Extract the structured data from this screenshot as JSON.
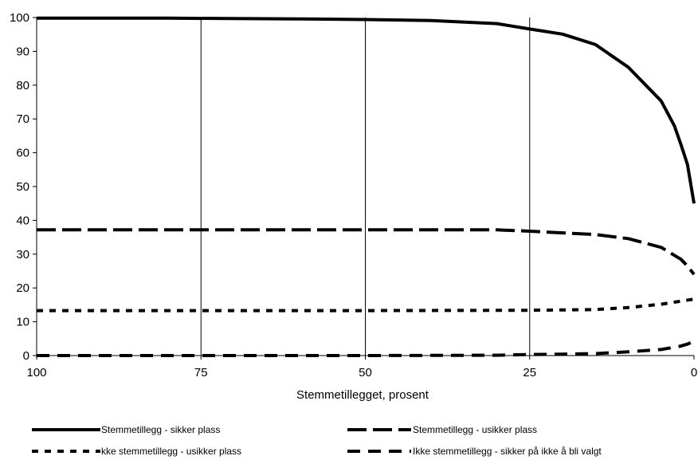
{
  "chart_data": {
    "type": "line",
    "title": "",
    "xlabel": "Stemmetillegget, prosent",
    "ylabel": "",
    "x_reversed": true,
    "xlim": [
      0,
      100
    ],
    "ylim": [
      0,
      100
    ],
    "x_ticks": [
      "100",
      "75",
      "50",
      "25",
      "0"
    ],
    "y_ticks": [
      "0",
      "10",
      "20",
      "30",
      "40",
      "50",
      "60",
      "70",
      "80",
      "90",
      "100"
    ],
    "vertical_gridlines": true,
    "horizontal_gridlines": false,
    "legend_position": "bottom",
    "series": [
      {
        "name": "Stemmetillegg - sikker plass",
        "style": "solid",
        "points": [
          [
            100,
            99.8
          ],
          [
            90,
            99.8
          ],
          [
            80,
            99.8
          ],
          [
            70,
            99.7
          ],
          [
            60,
            99.6
          ],
          [
            50,
            99.4
          ],
          [
            40,
            99.1
          ],
          [
            30,
            98.2
          ],
          [
            25,
            96.6
          ],
          [
            20,
            95.1
          ],
          [
            15,
            92.0
          ],
          [
            10,
            85.3
          ],
          [
            5,
            75.3
          ],
          [
            3,
            68.0
          ],
          [
            2,
            62.5
          ],
          [
            1,
            56.5
          ],
          [
            0,
            45.0
          ]
        ]
      },
      {
        "name": "Stemmetillegg - usikker plass",
        "style": "long-dash",
        "points": [
          [
            100,
            37.2
          ],
          [
            75,
            37.2
          ],
          [
            50,
            37.2
          ],
          [
            30,
            37.2
          ],
          [
            25,
            36.8
          ],
          [
            20,
            36.3
          ],
          [
            15,
            35.8
          ],
          [
            10,
            34.6
          ],
          [
            5,
            32.0
          ],
          [
            2,
            28.5
          ],
          [
            1,
            26.5
          ],
          [
            0,
            24.0
          ]
        ]
      },
      {
        "name": "kke stemmetillegg - usikker plass",
        "style": "short-dash",
        "points": [
          [
            100,
            13.3
          ],
          [
            75,
            13.3
          ],
          [
            50,
            13.3
          ],
          [
            25,
            13.4
          ],
          [
            15,
            13.6
          ],
          [
            10,
            14.2
          ],
          [
            5,
            15.2
          ],
          [
            0,
            16.7
          ]
        ]
      },
      {
        "name": "Ikke stemmetillegg - sikker på ikke å bli valgt",
        "style": "dash",
        "points": [
          [
            100,
            0.0
          ],
          [
            50,
            0.0
          ],
          [
            30,
            0.1
          ],
          [
            25,
            0.3
          ],
          [
            20,
            0.4
          ],
          [
            15,
            0.6
          ],
          [
            10,
            1.1
          ],
          [
            5,
            1.8
          ],
          [
            2,
            2.8
          ],
          [
            1,
            3.4
          ],
          [
            0,
            4.2
          ]
        ]
      }
    ]
  }
}
